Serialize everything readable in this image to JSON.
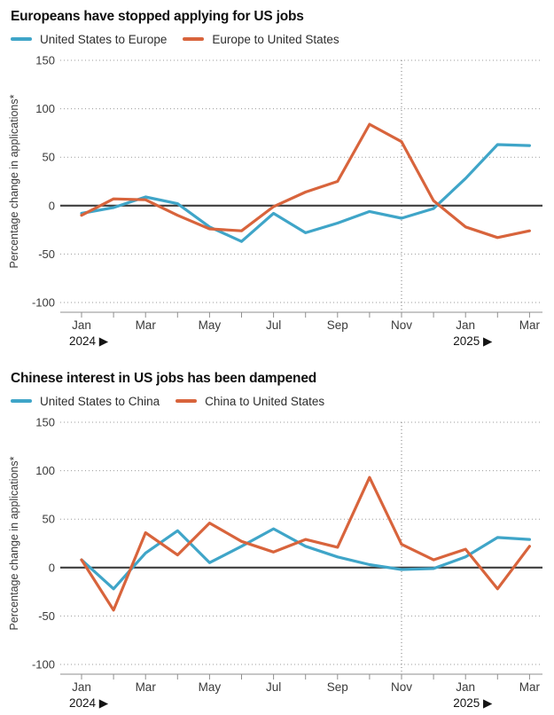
{
  "page": {
    "background": "#ffffff"
  },
  "colors": {
    "blue": "#3fa5c8",
    "orange": "#d8643c",
    "zero_line": "#3d3d3d",
    "grid": "#9a9a9a",
    "axis": "#8f8f8f",
    "marker_line": "#7a7a7a",
    "title_text": "#101010",
    "tick_text": "#3a3a3a"
  },
  "chart_data": [
    {
      "type": "line",
      "title": "Europeans have stopped applying for US jobs",
      "ylabel": "Percentage change in applications*",
      "ylim": [
        -100,
        150
      ],
      "yticks": [
        150,
        100,
        50,
        0,
        -50,
        -100
      ],
      "grid": "horizontal-dotted",
      "legend_position": "top",
      "x": [
        "Jan 2024",
        "Feb 2024",
        "Mar 2024",
        "Apr 2024",
        "May 2024",
        "Jun 2024",
        "Jul 2024",
        "Aug 2024",
        "Sep 2024",
        "Oct 2024",
        "Nov 2024",
        "Dec 2024",
        "Jan 2025",
        "Feb 2025",
        "Mar 2025"
      ],
      "x_tick_label_indices": [
        0,
        2,
        4,
        6,
        8,
        10,
        12,
        14
      ],
      "x_tick_labels_shown": [
        "Jan",
        "Mar",
        "May",
        "Jul",
        "Sep",
        "Nov",
        "Jan",
        "Mar"
      ],
      "year_markers": [
        {
          "index": 0,
          "label": "2024 ▶"
        },
        {
          "index": 12,
          "label": "2025 ▶"
        }
      ],
      "annotation_line": {
        "x": "Nov 2024",
        "index": 10,
        "style": "dotted-vertical"
      },
      "series": [
        {
          "name": "United States to Europe",
          "color": "#3fa5c8",
          "values": [
            -8,
            -2,
            9,
            2,
            -22,
            -37,
            -8,
            -28,
            -18,
            -6,
            -13,
            -3,
            28,
            63,
            62
          ]
        },
        {
          "name": "Europe to United States",
          "color": "#d8643c",
          "values": [
            -10,
            7,
            6,
            -10,
            -24,
            -26,
            -1,
            14,
            25,
            84,
            66,
            5,
            -22,
            -33,
            -26
          ]
        }
      ]
    },
    {
      "type": "line",
      "title": "Chinese interest in US jobs has been dampened",
      "ylabel": "Percentage change in applications*",
      "ylim": [
        -100,
        150
      ],
      "yticks": [
        150,
        100,
        50,
        0,
        -50,
        -100
      ],
      "grid": "horizontal-dotted",
      "legend_position": "top",
      "x": [
        "Jan 2024",
        "Feb 2024",
        "Mar 2024",
        "Apr 2024",
        "May 2024",
        "Jun 2024",
        "Jul 2024",
        "Aug 2024",
        "Sep 2024",
        "Oct 2024",
        "Nov 2024",
        "Dec 2024",
        "Jan 2025",
        "Feb 2025",
        "Mar 2025"
      ],
      "x_tick_label_indices": [
        0,
        2,
        4,
        6,
        8,
        10,
        12,
        14
      ],
      "x_tick_labels_shown": [
        "Jan",
        "Mar",
        "May",
        "Jul",
        "Sep",
        "Nov",
        "Jan",
        "Mar"
      ],
      "year_markers": [
        {
          "index": 0,
          "label": "2024 ▶"
        },
        {
          "index": 12,
          "label": "2025 ▶"
        }
      ],
      "annotation_line": {
        "x": "Nov 2024",
        "index": 10,
        "style": "dotted-vertical"
      },
      "series": [
        {
          "name": "United States to China",
          "color": "#3fa5c8",
          "values": [
            8,
            -22,
            15,
            38,
            5,
            22,
            40,
            22,
            11,
            3,
            -2,
            -1,
            11,
            31,
            29
          ]
        },
        {
          "name": "China to United States",
          "color": "#d8643c",
          "values": [
            8,
            -44,
            36,
            13,
            46,
            27,
            16,
            29,
            21,
            93,
            24,
            8,
            19,
            -22,
            22
          ]
        }
      ]
    }
  ]
}
